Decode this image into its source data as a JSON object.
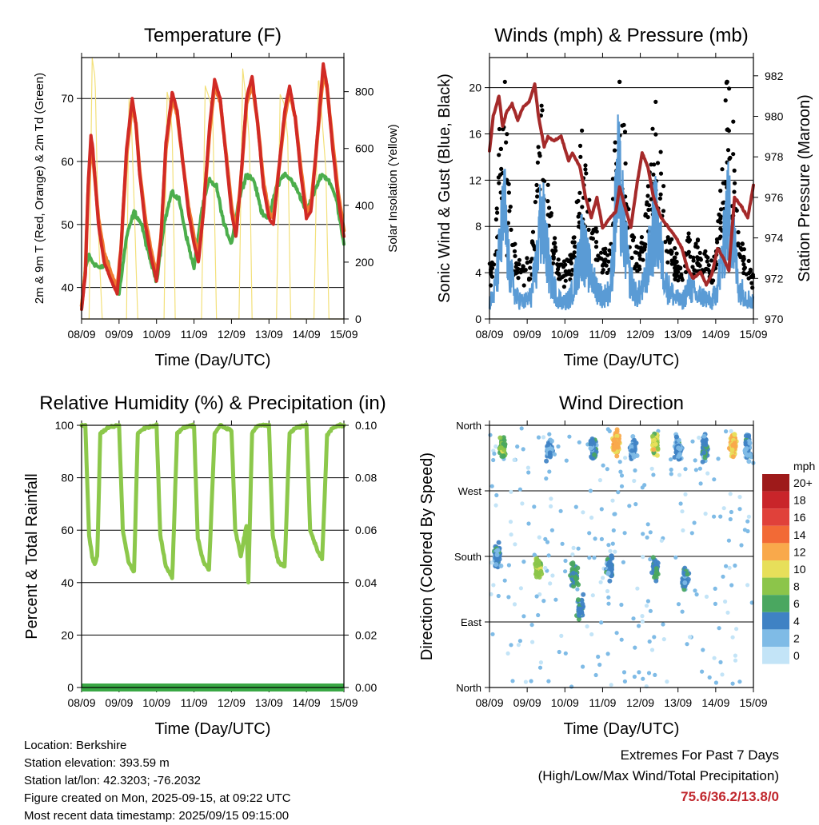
{
  "x_ticks": [
    "08/09",
    "09/09",
    "10/09",
    "11/09",
    "12/09",
    "13/09",
    "14/09",
    "15/09"
  ],
  "panels": {
    "temperature": {
      "title": "Temperature (F)",
      "xlabel": "Time (Day/UTC)",
      "ylabel_left": "2m & 9m T (Red, Orange) & 2m Td (Green)",
      "ylabel_right": "Solar Insolation (Yellow)",
      "left_ticks": [
        "40",
        "50",
        "60",
        "70"
      ],
      "right_ticks": [
        "0",
        "200",
        "400",
        "600",
        "800"
      ]
    },
    "winds": {
      "title": "Winds (mph) & Pressure (mb)",
      "xlabel": "Time (Day/UTC)",
      "ylabel_left": "Sonic Wind & Gust (Blue, Black)",
      "ylabel_right": "Station Pressure (Maroon)",
      "left_ticks": [
        "0",
        "4",
        "8",
        "12",
        "16",
        "20"
      ],
      "right_ticks": [
        "970",
        "972",
        "974",
        "976",
        "978",
        "980",
        "982"
      ]
    },
    "humidity": {
      "title": "Relative Humidity (%) & Precipitation (in)",
      "xlabel": "Time (Day/UTC)",
      "ylabel_left": "Percent & Total Rainfall",
      "left_ticks": [
        "0",
        "20",
        "40",
        "60",
        "80",
        "100"
      ],
      "right_ticks": [
        "0.00",
        "0.02",
        "0.04",
        "0.06",
        "0.08",
        "0.10"
      ]
    },
    "wind_direction": {
      "title": "Wind Direction",
      "xlabel": "Time (Day/UTC)",
      "ylabel_left": "Direction (Colored By Speed)",
      "left_ticks": [
        "North",
        "East",
        "South",
        "West",
        "North"
      ],
      "legend_title": "mph",
      "legend_labels": [
        "20+",
        "18",
        "16",
        "14",
        "12",
        "10",
        "8",
        "6",
        "4",
        "2",
        "0"
      ],
      "legend_colors": [
        "#9e1a1a",
        "#c9252a",
        "#e0413a",
        "#f26a36",
        "#f9a94b",
        "#e7df5a",
        "#8cc54a",
        "#4aa760",
        "#3f82c4",
        "#7fbbe6",
        "#c3e4f7"
      ]
    }
  },
  "chart_data": [
    {
      "type": "line",
      "title": "Temperature (F)",
      "xlabel": "Time (Day/UTC)",
      "ylabel": "2m & 9m T (Red, Orange) & 2m Td (Green)",
      "ylabel_right": "Solar Insolation (Yellow)",
      "ylim": [
        35,
        76.5
      ],
      "ylim_right": [
        0,
        920
      ],
      "x_range_days": [
        0,
        7
      ],
      "series": [
        {
          "name": "2m T",
          "color": "#d12a25",
          "axis": "left",
          "x": [
            0,
            0.1,
            0.18,
            0.25,
            0.3,
            0.45,
            0.6,
            0.8,
            0.95,
            1.05,
            1.2,
            1.35,
            1.45,
            1.55,
            1.7,
            1.85,
            2.0,
            2.12,
            2.25,
            2.42,
            2.55,
            2.7,
            2.85,
            3.0,
            3.12,
            3.25,
            3.42,
            3.55,
            3.7,
            3.85,
            4.0,
            4.12,
            4.25,
            4.4,
            4.55,
            4.7,
            4.85,
            5.0,
            5.12,
            5.25,
            5.42,
            5.55,
            5.7,
            5.85,
            6.0,
            6.12,
            6.25,
            6.45,
            6.55,
            6.7,
            6.85,
            7.0
          ],
          "y": [
            36.5,
            42,
            57,
            64,
            62,
            50,
            44,
            41,
            39,
            46,
            62,
            70,
            66,
            58,
            50,
            45,
            41,
            48,
            63,
            71,
            68,
            60,
            52,
            47,
            44,
            52,
            66,
            73,
            70,
            61,
            52,
            48,
            57,
            70,
            73.5,
            66,
            56,
            51,
            50,
            58,
            68,
            72,
            67,
            58,
            51,
            52,
            61,
            75.5,
            72,
            62,
            54,
            48
          ]
        },
        {
          "name": "9m T",
          "color": "#f07a30",
          "axis": "left",
          "x": [
            0,
            0.1,
            0.18,
            0.25,
            0.3,
            0.45,
            0.6,
            0.8,
            0.95,
            1.05,
            1.2,
            1.35,
            1.45,
            1.55,
            1.7,
            1.85,
            2.0,
            2.12,
            2.25,
            2.42,
            2.55,
            2.7,
            2.85,
            3.0,
            3.12,
            3.25,
            3.42,
            3.55,
            3.7,
            3.85,
            4.0,
            4.12,
            4.25,
            4.4,
            4.55,
            4.7,
            4.85,
            5.0,
            5.12,
            5.25,
            5.42,
            5.55,
            5.7,
            5.85,
            6.0,
            6.12,
            6.25,
            6.45,
            6.55,
            6.7,
            6.85,
            7.0
          ],
          "y": [
            37,
            42.5,
            56,
            62.5,
            61,
            51,
            45.5,
            42,
            40,
            46,
            61,
            69,
            66,
            58.5,
            51,
            46,
            42,
            48,
            62,
            70,
            67.5,
            60,
            53,
            48,
            45,
            52,
            65,
            72,
            69.5,
            61.5,
            53,
            49,
            57,
            69,
            72.5,
            66,
            57,
            52,
            51,
            58,
            67,
            71,
            67,
            59,
            52,
            53,
            61,
            74,
            71.5,
            63,
            55,
            49
          ]
        },
        {
          "name": "2m Td",
          "color": "#4cae4c",
          "axis": "left",
          "x": [
            0,
            0.1,
            0.2,
            0.3,
            0.5,
            0.7,
            0.9,
            1.0,
            1.2,
            1.4,
            1.6,
            1.8,
            2.0,
            2.2,
            2.4,
            2.6,
            2.8,
            3.0,
            3.2,
            3.4,
            3.6,
            3.8,
            4.0,
            4.2,
            4.4,
            4.6,
            4.8,
            5.0,
            5.2,
            5.4,
            5.6,
            5.8,
            6.0,
            6.2,
            6.4,
            6.6,
            6.8,
            7.0
          ],
          "y": [
            36.5,
            43,
            45,
            44,
            43,
            44,
            40,
            39,
            48,
            52,
            50,
            45,
            41,
            50,
            55,
            54,
            48,
            43,
            52,
            57,
            56,
            50,
            47,
            54,
            58,
            57,
            52,
            51,
            56,
            58,
            57,
            55,
            52,
            55,
            58,
            57,
            54,
            47
          ]
        },
        {
          "name": "Solar Insolation",
          "color": "#f3e07a",
          "axis": "right",
          "x": [
            0,
            0.2,
            0.28,
            0.36,
            0.45,
            0.55,
            0.9,
            1.2,
            1.26,
            1.32,
            1.38,
            1.5,
            1.9,
            2.2,
            2.28,
            2.35,
            2.42,
            2.5,
            2.9,
            3.2,
            3.3,
            3.4,
            3.5,
            3.6,
            3.9,
            4.2,
            4.3,
            4.4,
            4.48,
            4.55,
            4.9,
            5.2,
            5.3,
            5.4,
            5.5,
            5.58,
            5.9,
            6.2,
            6.32,
            6.42,
            6.52,
            6.6,
            7.0
          ],
          "y": [
            0,
            0,
            920,
            850,
            300,
            0,
            0,
            0,
            780,
            720,
            500,
            0,
            0,
            0,
            800,
            760,
            650,
            0,
            0,
            0,
            820,
            780,
            720,
            0,
            0,
            0,
            880,
            760,
            620,
            0,
            0,
            0,
            790,
            760,
            640,
            0,
            0,
            0,
            860,
            700,
            520,
            0,
            0
          ]
        }
      ]
    },
    {
      "type": "line",
      "title": "Winds (mph) & Pressure (mb)",
      "xlabel": "Time (Day/UTC)",
      "ylabel": "Sonic Wind & Gust (Blue, Black)",
      "ylabel_right": "Station Pressure (Maroon)",
      "ylim": [
        0,
        22.6
      ],
      "ylim_right": [
        970,
        982.9
      ],
      "x_range_days": [
        0,
        7
      ],
      "series": [
        {
          "name": "Station Pressure",
          "color": "#a52a2a",
          "axis": "right",
          "x": [
            0,
            0.1,
            0.25,
            0.35,
            0.45,
            0.6,
            0.75,
            0.9,
            1.05,
            1.2,
            1.3,
            1.45,
            1.55,
            1.7,
            1.9,
            2.1,
            2.2,
            2.4,
            2.55,
            2.7,
            2.85,
            3.0,
            3.2,
            3.35,
            3.45,
            3.6,
            3.75,
            3.9,
            4.05,
            4.2,
            4.35,
            4.55,
            4.75,
            4.95,
            5.1,
            5.25,
            5.4,
            5.6,
            5.75,
            5.9,
            6.05,
            6.2,
            6.35,
            6.5,
            6.7,
            6.85,
            7.0
          ],
          "y": [
            978.3,
            980.0,
            981.0,
            979.5,
            980.2,
            980.6,
            979.8,
            980.5,
            980.7,
            981.6,
            980.0,
            978.5,
            979.0,
            978.8,
            979.0,
            977.8,
            978.2,
            977.5,
            976.0,
            975.0,
            976.0,
            974.5,
            975.0,
            975.3,
            976.5,
            975.5,
            974.5,
            976.5,
            978.2,
            977.5,
            976.0,
            975.0,
            974.5,
            974.0,
            973.5,
            972.5,
            972.0,
            972.3,
            971.7,
            972.2,
            973.5,
            973.0,
            972.4,
            976.0,
            975.5,
            975.0,
            976.6
          ]
        },
        {
          "name": "Sonic Wind",
          "color": "#5a9bd5",
          "axis": "left",
          "x": [
            0,
            0.1,
            0.2,
            0.3,
            0.4,
            0.5,
            0.7,
            0.9,
            1.1,
            1.25,
            1.35,
            1.45,
            1.6,
            1.8,
            2.0,
            2.15,
            2.3,
            2.45,
            2.6,
            2.8,
            3.0,
            3.2,
            3.3,
            3.4,
            3.5,
            3.7,
            3.9,
            4.1,
            4.25,
            4.4,
            4.5,
            4.7,
            4.9,
            5.1,
            5.3,
            5.5,
            5.7,
            5.9,
            6.05,
            6.2,
            6.3,
            6.45,
            6.6,
            6.8,
            7.0
          ],
          "y": [
            1.5,
            2,
            4,
            7,
            10,
            5,
            2,
            1.5,
            2,
            5,
            9,
            8,
            4,
            2,
            1.5,
            2,
            4,
            7,
            5,
            3,
            2,
            2.5,
            7,
            13,
            10,
            4,
            2,
            3,
            6,
            9,
            7,
            3,
            2,
            1.5,
            3,
            2,
            2,
            1.5,
            3,
            6,
            10,
            8,
            3,
            2,
            1.5
          ]
        },
        {
          "name": "Gust",
          "color": "#000000",
          "axis": "left",
          "x": [
            0.1,
            0.2,
            0.25,
            0.3,
            0.35,
            0.4,
            0.45,
            0.6,
            1.2,
            1.25,
            1.3,
            1.35,
            1.4,
            1.45,
            1.5,
            2.3,
            2.4,
            2.45,
            2.5,
            3.3,
            3.35,
            3.4,
            3.42,
            3.45,
            3.5,
            3.55,
            4.3,
            4.4,
            4.45,
            4.5,
            5.4,
            5.5,
            6.2,
            6.25,
            6.3,
            6.35,
            6.4,
            6.45
          ],
          "y": [
            5,
            9,
            13,
            15,
            12,
            10,
            7,
            4,
            8,
            11,
            13,
            14,
            12,
            10,
            7,
            7,
            9,
            10,
            8,
            10,
            14,
            17,
            20.5,
            16,
            12,
            9,
            9,
            12,
            13,
            10,
            5,
            7,
            10,
            12,
            15,
            16,
            13,
            9
          ]
        }
      ]
    },
    {
      "type": "line",
      "title": "Relative Humidity (%) & Precipitation (in)",
      "xlabel": "Time (Day/UTC)",
      "ylabel": "Percent & Total Rainfall",
      "ylim": [
        0,
        100
      ],
      "ylim_right": [
        0,
        0.1
      ],
      "x_range_days": [
        0,
        7
      ],
      "series": [
        {
          "name": "Relative Humidity",
          "color": "#8cc84b",
          "axis": "left",
          "x": [
            0,
            0.1,
            0.2,
            0.28,
            0.35,
            0.42,
            0.5,
            0.7,
            1.0,
            1.1,
            1.25,
            1.4,
            1.5,
            1.7,
            2.0,
            2.1,
            2.25,
            2.42,
            2.55,
            2.7,
            3.0,
            3.1,
            3.25,
            3.4,
            3.55,
            3.7,
            4.0,
            4.1,
            4.25,
            4.4,
            4.45,
            4.55,
            4.7,
            5.0,
            5.1,
            5.25,
            5.42,
            5.55,
            5.7,
            6.0,
            6.1,
            6.3,
            6.42,
            6.55,
            6.7,
            6.9,
            7.0
          ],
          "y": [
            100,
            100,
            58,
            50,
            47,
            50,
            97,
            99,
            100,
            60,
            48,
            44,
            97,
            99,
            100,
            58,
            46,
            42,
            97,
            99,
            100,
            57,
            48,
            45,
            97,
            100,
            98,
            60,
            50,
            62,
            40,
            97,
            100,
            100,
            58,
            48,
            46,
            97,
            99,
            100,
            60,
            52,
            49,
            96,
            99,
            100,
            100
          ]
        },
        {
          "name": "Total Rainfall",
          "color": "#3aa845",
          "axis": "right",
          "x": [
            0,
            7
          ],
          "y": [
            0,
            0
          ]
        }
      ]
    },
    {
      "type": "scatter",
      "title": "Wind Direction",
      "xlabel": "Time (Day/UTC)",
      "ylabel": "Direction (Colored By Speed)",
      "ylim": [
        0,
        360
      ],
      "y_ticks": [
        "North",
        "East",
        "South",
        "West",
        "North"
      ],
      "x_range_days": [
        0,
        7
      ],
      "legend_title": "mph",
      "clusters": [
        {
          "x": 0.35,
          "dir": 330,
          "speed": 7
        },
        {
          "x": 0.2,
          "dir": 180,
          "speed": 4
        },
        {
          "x": 1.3,
          "dir": 165,
          "speed": 8
        },
        {
          "x": 1.6,
          "dir": 325,
          "speed": 3
        },
        {
          "x": 2.25,
          "dir": 155,
          "speed": 5
        },
        {
          "x": 2.4,
          "dir": 110,
          "speed": 4
        },
        {
          "x": 2.75,
          "dir": 330,
          "speed": 4
        },
        {
          "x": 3.35,
          "dir": 335,
          "speed": 12
        },
        {
          "x": 3.2,
          "dir": 165,
          "speed": 4
        },
        {
          "x": 3.8,
          "dir": 330,
          "speed": 3
        },
        {
          "x": 4.4,
          "dir": 335,
          "speed": 9
        },
        {
          "x": 4.4,
          "dir": 165,
          "speed": 5
        },
        {
          "x": 5.0,
          "dir": 330,
          "speed": 3
        },
        {
          "x": 5.2,
          "dir": 150,
          "speed": 4
        },
        {
          "x": 5.7,
          "dir": 330,
          "speed": 4
        },
        {
          "x": 6.45,
          "dir": 335,
          "speed": 11
        },
        {
          "x": 6.85,
          "dir": 330,
          "speed": 3
        }
      ]
    }
  ],
  "info": {
    "location": "Location: Berkshire",
    "elevation": "Station elevation: 393.59 m",
    "latlon": "Station lat/lon: 42.3203; -76.2032",
    "created": "Figure created on Mon, 2025-09-15, at 09:22 UTC",
    "recent": "Most recent data timestamp: 2025/09/15 09:15:00"
  },
  "extremes": {
    "title": "Extremes For Past 7 Days",
    "subtitle": "(High/Low/Max Wind/Total Precipitation)",
    "values": "75.6/36.2/13.8/0"
  }
}
